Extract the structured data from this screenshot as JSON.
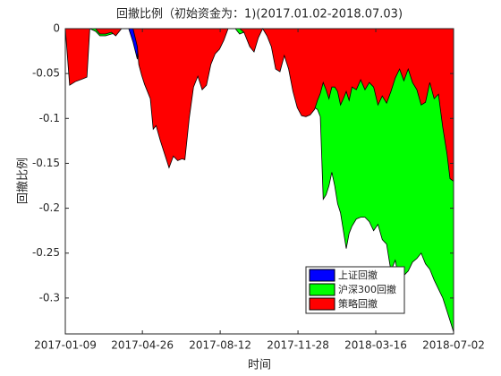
{
  "chart_data": {
    "type": "area",
    "title": "回撤比例（初始资金为：1)(2017.01.02-2018.07.03)",
    "xlabel": "时间",
    "ylabel": "回撤比例",
    "x": [
      "2017-01-09",
      "2017-01-15",
      "2017-01-23",
      "2017-02-02",
      "2017-02-08",
      "2017-02-12",
      "2017-02-20",
      "2017-02-26",
      "2017-03-06",
      "2017-03-14",
      "2017-03-20",
      "2017-03-28",
      "2017-04-07",
      "2017-04-13",
      "2017-04-19",
      "2017-04-21",
      "2017-04-25",
      "2017-04-29",
      "2017-05-07",
      "2017-05-11",
      "2017-05-15",
      "2017-05-21",
      "2017-05-27",
      "2017-06-02",
      "2017-06-08",
      "2017-06-14",
      "2017-06-20",
      "2017-06-24",
      "2017-06-30",
      "2017-07-06",
      "2017-07-12",
      "2017-07-18",
      "2017-07-24",
      "2017-07-30",
      "2017-08-05",
      "2017-08-11",
      "2017-08-17",
      "2017-08-23",
      "2017-09-02",
      "2017-09-08",
      "2017-09-14",
      "2017-09-22",
      "2017-09-28",
      "2017-10-04",
      "2017-10-10",
      "2017-10-16",
      "2017-10-22",
      "2017-10-28",
      "2017-11-03",
      "2017-11-09",
      "2017-11-15",
      "2017-11-21",
      "2017-11-27",
      "2017-12-03",
      "2017-12-09",
      "2017-12-15",
      "2017-12-21",
      "2017-12-25",
      "2017-12-29",
      "2018-01-02",
      "2018-01-06",
      "2018-01-10",
      "2018-01-14",
      "2018-01-18",
      "2018-01-22",
      "2018-01-26",
      "2018-01-30",
      "2018-02-03",
      "2018-02-07",
      "2018-02-11",
      "2018-02-17",
      "2018-02-23",
      "2018-03-01",
      "2018-03-07",
      "2018-03-13",
      "2018-03-19",
      "2018-03-25",
      "2018-03-31",
      "2018-04-06",
      "2018-04-12",
      "2018-04-18",
      "2018-04-24",
      "2018-04-30",
      "2018-05-06",
      "2018-05-12",
      "2018-05-18",
      "2018-05-24",
      "2018-05-30",
      "2018-06-05",
      "2018-06-11",
      "2018-06-17",
      "2018-06-23",
      "2018-06-27",
      "2018-07-02"
    ],
    "series": [
      {
        "name": "上证回撤",
        "color": "#0000ff",
        "values": [
          0,
          0,
          0,
          0,
          0,
          0,
          0,
          0,
          0,
          0,
          0,
          0,
          0,
          -0.015,
          -0.034,
          0,
          0,
          0,
          0,
          0,
          0,
          0,
          0,
          0,
          0,
          0,
          0,
          0,
          0,
          0,
          0,
          0,
          0,
          0,
          0,
          0,
          0,
          0,
          0,
          0,
          0,
          0,
          0,
          0,
          0,
          0,
          0,
          0,
          0,
          0,
          0,
          0,
          0,
          0,
          0,
          0,
          0,
          0,
          0,
          0,
          0,
          0,
          0,
          0,
          0,
          0,
          0,
          0,
          0,
          0,
          0,
          0,
          0,
          0,
          0,
          0,
          0,
          0,
          0,
          0,
          0,
          0,
          0,
          0,
          0,
          0,
          0,
          0,
          0,
          0,
          0,
          0,
          0,
          0
        ]
      },
      {
        "name": "沪深300回撤",
        "color": "#00ff00",
        "values": [
          0,
          0,
          0,
          0,
          0,
          0,
          -0.003,
          -0.008,
          -0.008,
          -0.006,
          -0.005,
          0,
          0,
          0,
          0,
          0,
          0,
          0,
          0,
          0,
          0,
          0,
          0,
          0,
          0,
          0,
          0,
          0,
          0,
          0,
          0,
          0,
          0,
          0,
          0,
          0,
          0,
          0,
          0,
          -0.006,
          -0.004,
          0,
          0,
          0,
          0,
          0,
          0,
          0,
          0,
          0,
          0,
          0,
          0,
          0,
          0,
          0,
          -0.088,
          -0.09,
          -0.098,
          -0.19,
          -0.185,
          -0.175,
          -0.16,
          -0.175,
          -0.195,
          -0.205,
          -0.225,
          -0.245,
          -0.228,
          -0.22,
          -0.212,
          -0.21,
          -0.21,
          -0.215,
          -0.225,
          -0.218,
          -0.235,
          -0.24,
          -0.27,
          -0.258,
          -0.282,
          -0.275,
          -0.27,
          -0.26,
          -0.256,
          -0.25,
          -0.262,
          -0.268,
          -0.28,
          -0.29,
          -0.3,
          -0.315,
          -0.325,
          -0.338
        ]
      },
      {
        "name": "策略回撤",
        "color": "#ff0000",
        "values": [
          0,
          -0.063,
          -0.059,
          -0.056,
          -0.054,
          0,
          0,
          -0.006,
          -0.006,
          -0.004,
          -0.008,
          0,
          0,
          0,
          -0.02,
          -0.04,
          -0.052,
          -0.062,
          -0.078,
          -0.112,
          -0.108,
          -0.125,
          -0.14,
          -0.155,
          -0.142,
          -0.147,
          -0.145,
          -0.146,
          -0.1,
          -0.065,
          -0.053,
          -0.068,
          -0.063,
          -0.04,
          -0.028,
          -0.023,
          -0.013,
          0,
          0,
          0,
          -0.004,
          -0.02,
          -0.026,
          -0.01,
          0,
          -0.008,
          -0.02,
          -0.045,
          -0.048,
          -0.03,
          -0.045,
          -0.07,
          -0.088,
          -0.097,
          -0.098,
          -0.096,
          -0.09,
          -0.08,
          -0.072,
          -0.06,
          -0.068,
          -0.078,
          -0.065,
          -0.065,
          -0.07,
          -0.085,
          -0.078,
          -0.07,
          -0.08,
          -0.065,
          -0.068,
          -0.057,
          -0.068,
          -0.06,
          -0.065,
          -0.085,
          -0.075,
          -0.083,
          -0.07,
          -0.055,
          -0.045,
          -0.058,
          -0.045,
          -0.06,
          -0.068,
          -0.085,
          -0.082,
          -0.06,
          -0.078,
          -0.073,
          -0.11,
          -0.14,
          -0.167,
          -0.17
        ]
      }
    ],
    "xlim": [
      "2017-01-09",
      "2018-07-02"
    ],
    "xticks": [
      "2017-01-09",
      "2017-04-26",
      "2017-08-12",
      "2017-11-28",
      "2018-03-16",
      "2018-07-02"
    ],
    "ylim": [
      -0.34,
      0
    ],
    "yticks": [
      0,
      -0.05,
      -0.1,
      -0.15,
      -0.2,
      -0.25,
      -0.3
    ],
    "legend": "southeast"
  }
}
